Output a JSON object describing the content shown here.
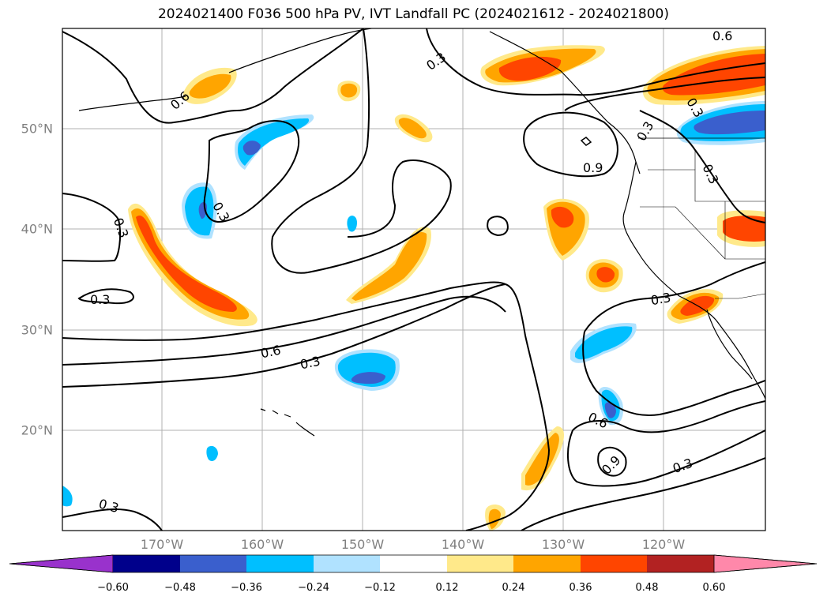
{
  "title": "2024021400 F036 500 hPa PV, IVT Landfall PC (2024021612 - 2024021800)",
  "map": {
    "lon_labels": [
      "170°W",
      "160°W",
      "150°W",
      "140°W",
      "130°W",
      "120°W"
    ],
    "lat_labels": [
      "50°N",
      "40°N",
      "30°N",
      "20°N"
    ],
    "contour_labels": [
      "0.6",
      "0.3",
      "0.6",
      "0.3",
      "0.3",
      "0.3",
      "0.3",
      "0.9",
      "0.3",
      "0.6",
      "0.3",
      "0.3",
      "0.3",
      "0.6",
      "0.9",
      "0.3",
      "0.3"
    ]
  },
  "colorbar": {
    "ticks": [
      "−0.60",
      "−0.48",
      "−0.36",
      "−0.24",
      "−0.12",
      "0.12",
      "0.24",
      "0.36",
      "0.48",
      "0.60"
    ],
    "colors": [
      "#9932cc",
      "#00008b",
      "#3a5fcd",
      "#00bfff",
      "#b0e2ff",
      "#ffffff",
      "#ffe98a",
      "#ffa500",
      "#ff4500",
      "#b22222",
      "#ff88aa"
    ]
  }
}
